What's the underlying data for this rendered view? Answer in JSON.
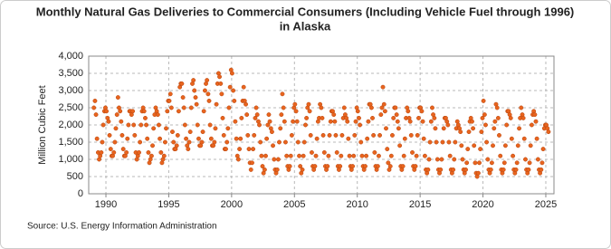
{
  "chart_data": {
    "type": "scatter",
    "title": [
      "Monthly Natural Gas Deliveries to Commercial Consumers (Including Vehicle Fuel through 1996)",
      "in Alaska"
    ],
    "ylabel": "Million Cubic Feet",
    "source": "Source: U.S. Energy Information Administration",
    "color": "#e8641e",
    "grid": true,
    "xlim": [
      1988.63,
      2025.65
    ],
    "ylim": [
      0,
      4000
    ],
    "xticks": [
      1990,
      1995,
      2000,
      2005,
      2010,
      2015,
      2020,
      2025
    ],
    "yticks": [
      0,
      {
        "value": 500,
        "label": "500"
      },
      {
        "value": 1000,
        "label": "1,000"
      },
      {
        "value": 1500,
        "label": "1,500"
      },
      {
        "value": 2000,
        "label": "2,000"
      },
      {
        "value": 2500,
        "label": "2,500"
      },
      {
        "value": 3000,
        "label": "3,000"
      },
      {
        "value": 3500,
        "label": "3,500"
      },
      {
        "value": 4000,
        "label": "4,000"
      }
    ],
    "x": [
      1989.04,
      1989.13,
      1989.21,
      1989.29,
      1989.38,
      1989.46,
      1989.54,
      1989.63,
      1989.71,
      1989.79,
      1989.88,
      1989.96,
      1990.04,
      1990.13,
      1990.21,
      1990.29,
      1990.38,
      1990.46,
      1990.54,
      1990.63,
      1990.71,
      1990.79,
      1990.88,
      1990.96,
      1991.04,
      1991.13,
      1991.21,
      1991.29,
      1991.38,
      1991.46,
      1991.54,
      1991.63,
      1991.71,
      1991.79,
      1991.88,
      1991.96,
      1992.04,
      1992.13,
      1992.21,
      1992.29,
      1992.38,
      1992.46,
      1992.54,
      1992.63,
      1992.71,
      1992.79,
      1992.88,
      1992.96,
      1993.04,
      1993.13,
      1993.21,
      1993.29,
      1993.38,
      1993.46,
      1993.54,
      1993.63,
      1993.71,
      1993.79,
      1993.88,
      1993.96,
      1994.04,
      1994.13,
      1994.21,
      1994.29,
      1994.38,
      1994.46,
      1994.54,
      1994.63,
      1994.71,
      1994.79,
      1994.88,
      1994.96,
      1995.04,
      1995.13,
      1995.21,
      1995.29,
      1995.38,
      1995.46,
      1995.54,
      1995.63,
      1995.71,
      1995.79,
      1995.88,
      1995.96,
      1996.04,
      1996.13,
      1996.21,
      1996.29,
      1996.38,
      1996.46,
      1996.54,
      1996.63,
      1996.71,
      1996.79,
      1996.88,
      1996.96,
      1997.04,
      1997.13,
      1997.21,
      1997.29,
      1997.38,
      1997.46,
      1997.54,
      1997.63,
      1997.71,
      1997.79,
      1997.88,
      1997.96,
      1998.04,
      1998.13,
      1998.21,
      1998.29,
      1998.38,
      1998.46,
      1998.54,
      1998.63,
      1998.71,
      1998.79,
      1998.88,
      1998.96,
      1999.04,
      1999.13,
      1999.21,
      1999.29,
      1999.38,
      1999.46,
      1999.54,
      1999.63,
      1999.71,
      1999.79,
      1999.88,
      1999.96,
      2000.04,
      2000.13,
      2000.21,
      2000.29,
      2000.38,
      2000.46,
      2000.54,
      2000.63,
      2000.71,
      2000.79,
      2000.88,
      2000.96,
      2001.04,
      2001.13,
      2001.21,
      2001.29,
      2001.38,
      2001.46,
      2001.54,
      2001.63,
      2001.71,
      2001.79,
      2001.88,
      2001.96,
      2002.04,
      2002.13,
      2002.21,
      2002.29,
      2002.38,
      2002.46,
      2002.54,
      2002.63,
      2002.71,
      2002.79,
      2002.88,
      2002.96,
      2003.04,
      2003.13,
      2003.21,
      2003.29,
      2003.38,
      2003.46,
      2003.54,
      2003.63,
      2003.71,
      2003.79,
      2003.88,
      2003.96,
      2004.04,
      2004.13,
      2004.21,
      2004.29,
      2004.38,
      2004.46,
      2004.54,
      2004.63,
      2004.71,
      2004.79,
      2004.88,
      2004.96,
      2005.04,
      2005.13,
      2005.21,
      2005.29,
      2005.38,
      2005.46,
      2005.54,
      2005.63,
      2005.71,
      2005.79,
      2005.88,
      2005.96,
      2006.04,
      2006.13,
      2006.21,
      2006.29,
      2006.38,
      2006.46,
      2006.54,
      2006.63,
      2006.71,
      2006.79,
      2006.88,
      2006.96,
      2007.04,
      2007.13,
      2007.21,
      2007.29,
      2007.38,
      2007.46,
      2007.54,
      2007.63,
      2007.71,
      2007.79,
      2007.88,
      2007.96,
      2008.04,
      2008.13,
      2008.21,
      2008.29,
      2008.38,
      2008.46,
      2008.54,
      2008.63,
      2008.71,
      2008.79,
      2008.88,
      2008.96,
      2009.04,
      2009.13,
      2009.21,
      2009.29,
      2009.38,
      2009.46,
      2009.54,
      2009.63,
      2009.71,
      2009.79,
      2009.88,
      2009.96,
      2010.04,
      2010.13,
      2010.21,
      2010.29,
      2010.38,
      2010.46,
      2010.54,
      2010.63,
      2010.71,
      2010.79,
      2010.88,
      2010.96,
      2011.04,
      2011.13,
      2011.21,
      2011.29,
      2011.38,
      2011.46,
      2011.54,
      2011.63,
      2011.71,
      2011.79,
      2011.88,
      2011.96,
      2012.04,
      2012.13,
      2012.21,
      2012.29,
      2012.38,
      2012.46,
      2012.54,
      2012.63,
      2012.71,
      2012.79,
      2012.88,
      2012.96,
      2013.04,
      2013.13,
      2013.21,
      2013.29,
      2013.38,
      2013.46,
      2013.54,
      2013.63,
      2013.71,
      2013.79,
      2013.88,
      2013.96,
      2014.04,
      2014.13,
      2014.21,
      2014.29,
      2014.38,
      2014.46,
      2014.54,
      2014.63,
      2014.71,
      2014.79,
      2014.88,
      2014.96,
      2015.04,
      2015.13,
      2015.21,
      2015.29,
      2015.38,
      2015.46,
      2015.54,
      2015.63,
      2015.71,
      2015.79,
      2015.88,
      2015.96,
      2016.04,
      2016.13,
      2016.21,
      2016.29,
      2016.38,
      2016.46,
      2016.54,
      2016.63,
      2016.71,
      2016.79,
      2016.88,
      2016.96,
      2017.04,
      2017.13,
      2017.21,
      2017.29,
      2017.38,
      2017.46,
      2017.54,
      2017.63,
      2017.71,
      2017.79,
      2017.88,
      2017.96,
      2018.04,
      2018.13,
      2018.21,
      2018.29,
      2018.38,
      2018.46,
      2018.54,
      2018.63,
      2018.71,
      2018.79,
      2018.88,
      2018.96,
      2019.04,
      2019.13,
      2019.21,
      2019.29,
      2019.38,
      2019.46,
      2019.54,
      2019.63,
      2019.71,
      2019.79,
      2019.88,
      2019.96,
      2020.04,
      2020.13,
      2020.21,
      2020.29,
      2020.38,
      2020.46,
      2020.54,
      2020.63,
      2020.71,
      2020.79,
      2020.88,
      2020.96,
      2021.04,
      2021.13,
      2021.21,
      2021.29,
      2021.38,
      2021.46,
      2021.54,
      2021.63,
      2021.71,
      2021.79,
      2021.88,
      2021.96,
      2022.04,
      2022.13,
      2022.21,
      2022.29,
      2022.38,
      2022.46,
      2022.54,
      2022.63,
      2022.71,
      2022.79,
      2022.88,
      2022.96,
      2023.04,
      2023.13,
      2023.21,
      2023.29,
      2023.38,
      2023.46,
      2023.54,
      2023.63,
      2023.71,
      2023.79,
      2023.88,
      2023.96,
      2024.04,
      2024.13,
      2024.21,
      2024.29,
      2024.38,
      2024.46,
      2024.54,
      2024.63,
      2024.71,
      2024.79,
      2024.88,
      2024.96,
      2025.04,
      2025.13,
      2025.21
    ],
    "values": [
      2500,
      2700,
      2300,
      1600,
      1200,
      1000,
      1100,
      1200,
      1500,
      2000,
      2400,
      2500,
      2400,
      2200,
      2100,
      1700,
      1300,
      1100,
      1100,
      1200,
      1500,
      1900,
      2300,
      2800,
      2500,
      2400,
      2100,
      1700,
      1300,
      1100,
      1100,
      1200,
      1600,
      2000,
      2400,
      2400,
      2300,
      2400,
      2000,
      1700,
      1200,
      1000,
      1100,
      1200,
      1500,
      2000,
      2400,
      2500,
      2400,
      2200,
      2000,
      1600,
      1200,
      900,
      1000,
      1100,
      1400,
      1900,
      2300,
      2500,
      2400,
      2300,
      2000,
      1600,
      1200,
      900,
      1000,
      1100,
      1500,
      1900,
      2400,
      2700,
      2700,
      2900,
      2500,
      1800,
      1500,
      1300,
      1300,
      1400,
      1700,
      2400,
      3100,
      3200,
      3200,
      2800,
      2500,
      2000,
      1600,
      1400,
      1300,
      1500,
      1800,
      2500,
      3200,
      3300,
      3000,
      2800,
      2600,
      2000,
      1600,
      1400,
      1400,
      1500,
      1800,
      2400,
      3000,
      3200,
      3300,
      2900,
      2700,
      2000,
      1600,
      1400,
      1400,
      1500,
      1900,
      2600,
      3200,
      3500,
      3400,
      3200,
      2900,
      2200,
      1700,
      1300,
      1300,
      1500,
      1900,
      2500,
      3100,
      3600,
      3500,
      3000,
      2700,
      2100,
      1600,
      1100,
      1000,
      1300,
      1600,
      2200,
      2700,
      3100,
      2700,
      2600,
      2300,
      1700,
      1300,
      900,
      700,
      900,
      1300,
      1700,
      2200,
      2500,
      2300,
      2100,
      2000,
      1500,
      1100,
      800,
      600,
      700,
      1100,
      1600,
      2000,
      2300,
      2100,
      1900,
      1800,
      1400,
      1000,
      700,
      600,
      700,
      1000,
      1500,
      1900,
      2300,
      2900,
      2500,
      2100,
      1500,
      1100,
      800,
      700,
      800,
      1100,
      1700,
      2100,
      2500,
      2600,
      2400,
      2100,
      1500,
      1100,
      800,
      600,
      700,
      1100,
      1500,
      2000,
      2200,
      2500,
      2600,
      2400,
      1700,
      1200,
      800,
      700,
      800,
      1100,
      1600,
      2100,
      2200,
      2600,
      2500,
      2200,
      1700,
      1200,
      800,
      700,
      800,
      1100,
      1700,
      2100,
      2400,
      2400,
      2300,
      2100,
      1700,
      1200,
      800,
      700,
      800,
      1100,
      1700,
      2200,
      2500,
      2300,
      2200,
      2100,
      1600,
      1100,
      800,
      700,
      800,
      1100,
      1700,
      2100,
      2500,
      2400,
      2200,
      2000,
      1500,
      1100,
      800,
      700,
      800,
      1100,
      1600,
      2100,
      2600,
      2600,
      2500,
      2200,
      1700,
      1200,
      800,
      700,
      800,
      1100,
      1700,
      2300,
      2500,
      3100,
      2600,
      2400,
      1900,
      1300,
      900,
      700,
      800,
      1100,
      1700,
      2200,
      2500,
      2500,
      2300,
      2100,
      1900,
      1400,
      800,
      700,
      800,
      1100,
      1600,
      2200,
      2500,
      2400,
      2200,
      2100,
      1700,
      1200,
      800,
      700,
      800,
      1100,
      1700,
      2200,
      2500,
      2500,
      2400,
      2100,
      1600,
      1100,
      700,
      600,
      700,
      1000,
      1500,
      2100,
      2500,
      2300,
      2200,
      1900,
      1500,
      1000,
      700,
      600,
      700,
      1000,
      1500,
      1900,
      2200,
      2200,
      2100,
      2000,
      1500,
      1100,
      700,
      600,
      700,
      1000,
      1500,
      1900,
      2100,
      2000,
      1900,
      1800,
      1400,
      1000,
      700,
      600,
      700,
      900,
      1300,
      1800,
      2100,
      2200,
      2100,
      1900,
      1400,
      900,
      600,
      500,
      600,
      900,
      1300,
      1800,
      2200,
      2700,
      2300,
      2000,
      1500,
      1000,
      700,
      600,
      700,
      900,
      1400,
      1900,
      2100,
      2600,
      2500,
      2200,
      1700,
      1100,
      700,
      600,
      700,
      900,
      1400,
      2000,
      2400,
      2400,
      2300,
      2200,
      1600,
      1100,
      700,
      600,
      700,
      900,
      1400,
      1900,
      2200,
      2500,
      2300,
      2200,
      1600,
      1000,
      700,
      600,
      700,
      900,
      1400,
      2000,
      2300,
      2400,
      2300,
      2100,
      1600,
      1000,
      700,
      600,
      700,
      900,
      1300,
      1900,
      2000,
      2000,
      1900,
      1800
    ]
  }
}
